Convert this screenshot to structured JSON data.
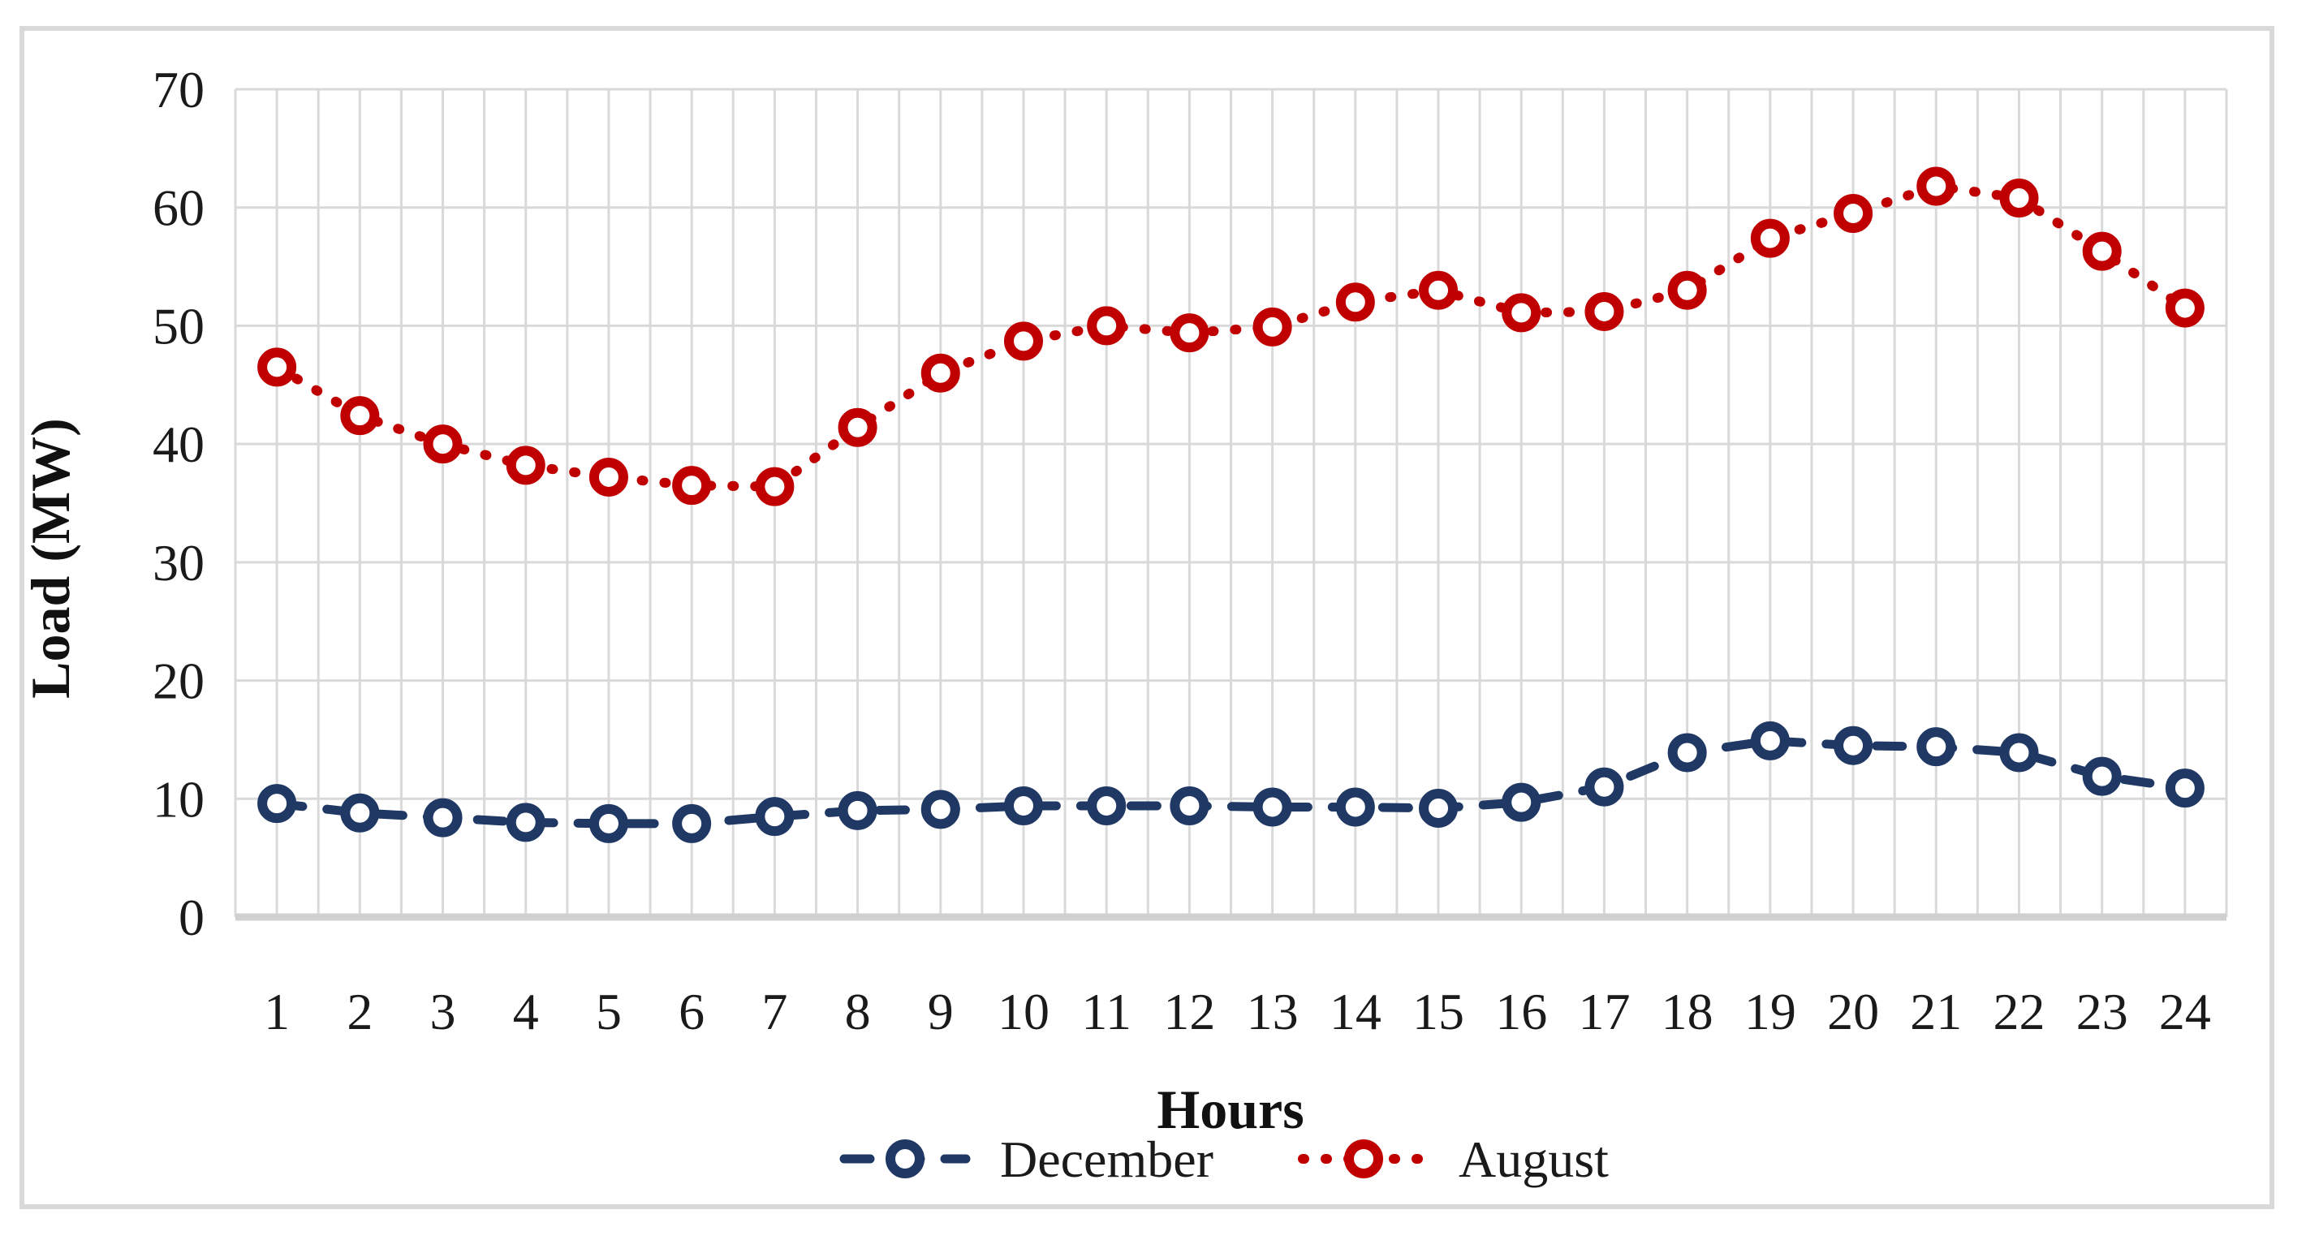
{
  "chart_data": {
    "type": "line",
    "title": "",
    "xlabel": "Hours",
    "ylabel": "Load (MW)",
    "categories": [
      1,
      2,
      3,
      4,
      5,
      6,
      7,
      8,
      9,
      10,
      11,
      12,
      13,
      14,
      15,
      16,
      17,
      18,
      19,
      20,
      21,
      22,
      23,
      24
    ],
    "ylim": [
      0,
      70
    ],
    "yticks": [
      0,
      10,
      20,
      30,
      40,
      50,
      60,
      70
    ],
    "grid": {
      "horizontal_major": true,
      "vertical_minor_per_category": 2,
      "gridline_color": "#D9D9D9",
      "axis_line_color": "#D0D0D0"
    },
    "legend_position": "bottom-center",
    "series": [
      {
        "name": "December",
        "color": "#1F3864",
        "line_style": "dashed",
        "marker": "open-circle",
        "values": [
          9.6,
          8.8,
          8.4,
          8.0,
          7.9,
          7.9,
          8.5,
          9.0,
          9.1,
          9.4,
          9.4,
          9.4,
          9.3,
          9.3,
          9.2,
          9.7,
          11.0,
          13.9,
          14.9,
          14.5,
          14.4,
          13.9,
          11.9,
          10.9
        ]
      },
      {
        "name": "August",
        "color": "#C00000",
        "line_style": "dotted",
        "marker": "open-circle",
        "values": [
          46.5,
          42.4,
          40.0,
          38.2,
          37.2,
          36.5,
          36.4,
          41.4,
          46.0,
          48.7,
          50.0,
          49.4,
          49.9,
          52.0,
          53.0,
          51.1,
          51.2,
          53.0,
          57.4,
          59.5,
          61.8,
          60.8,
          56.3,
          51.5
        ]
      }
    ]
  },
  "colors": {
    "background": "#FFFFFF",
    "chart_border": "#D9D9D9",
    "text": "#1A1A1A"
  }
}
